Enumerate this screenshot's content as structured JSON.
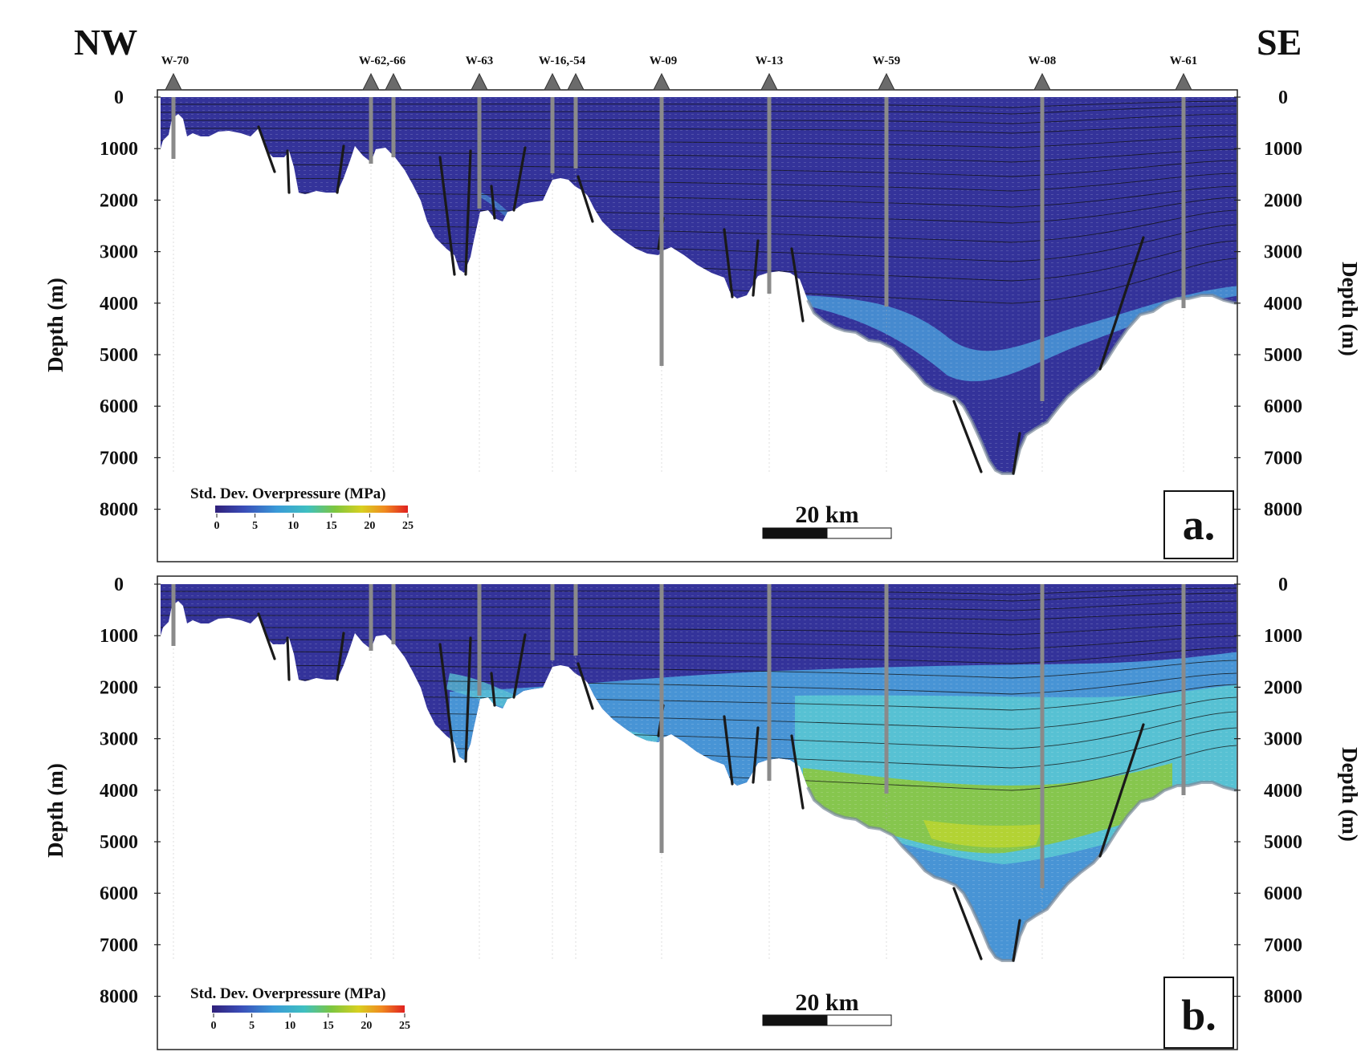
{
  "orientation": {
    "left": "NW",
    "right": "SE"
  },
  "wells": [
    "W-70",
    "W-62,-66",
    "W-63",
    "W-16,-54",
    "W-09",
    "W-13",
    "W-59",
    "W-08",
    "W-61"
  ],
  "axis": {
    "title": "Depth (m)",
    "ticks": [
      "0",
      "1000",
      "2000",
      "3000",
      "4000",
      "5000",
      "6000",
      "7000",
      "8000"
    ]
  },
  "legend": {
    "title": "Std. Dev. Overpressure (MPa)",
    "ticks": [
      "0",
      "5",
      "10",
      "15",
      "20",
      "25"
    ]
  },
  "scale_bar": {
    "label": "20 km"
  },
  "panels": [
    {
      "id": "a",
      "label": "a."
    },
    {
      "id": "b",
      "label": "b."
    }
  ],
  "colors": {
    "basin": "#34339a",
    "low": "#3a4db0",
    "mid_blue": "#4a9ad8",
    "cyan": "#58c3d3",
    "green": "#8cc63f",
    "yellow_green": "#b8d432",
    "well": "#8a8a8a",
    "fault": "#1a1a1a"
  }
}
